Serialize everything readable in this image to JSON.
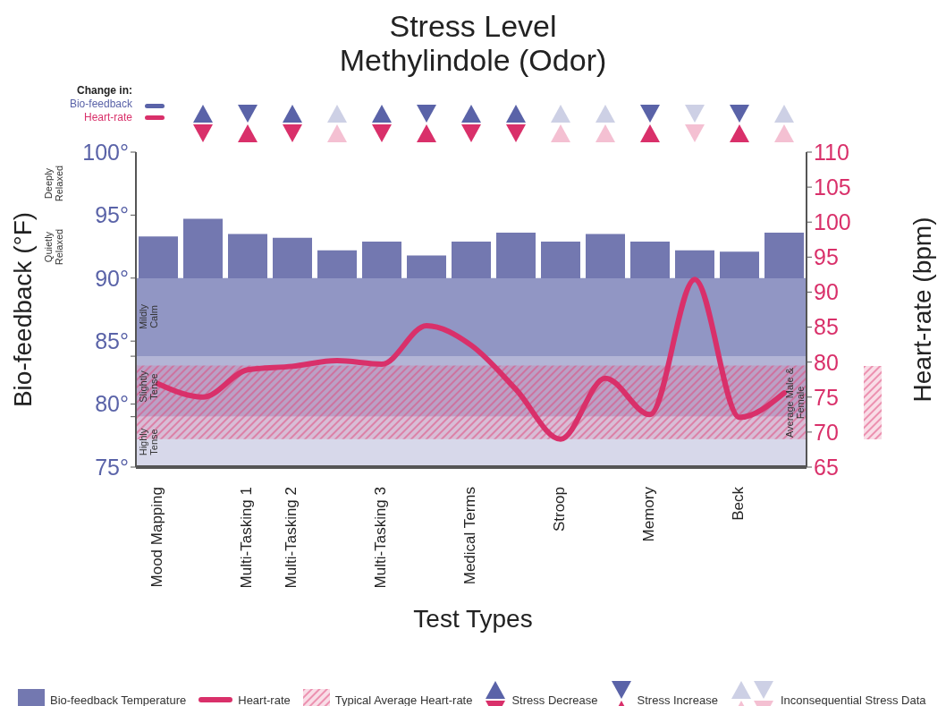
{
  "chart_data": {
    "type": "bar",
    "title": "Stress Level",
    "subtitle": "Methylindole (Odor)",
    "xlabel": "Test Types",
    "ylabel": "Bio-feedback (°F)",
    "y2label": "Heart-rate (bpm)",
    "categories": [
      "Mood Mapping",
      null,
      "Multi-Tasking 1",
      "Multi-Tasking 2",
      null,
      "Multi-Tasking 3",
      null,
      "Medical Terms",
      null,
      "Stroop",
      null,
      "Memory",
      null,
      "Beck",
      null
    ],
    "series": [
      {
        "name": "Bio-feedback Temperature",
        "color": "#7378b0",
        "values": [
          93.3,
          94.7,
          93.5,
          93.2,
          92.2,
          92.9,
          91.8,
          92.9,
          93.6,
          92.9,
          93.5,
          92.9,
          92.2,
          92.1,
          93.6
        ]
      },
      {
        "name": "Heart-rate",
        "type": "line",
        "axis": "y2",
        "color": "#d9306a",
        "values": [
          76.9,
          75.0,
          78.9,
          79.4,
          80.2,
          79.7,
          85.2,
          82.4,
          76.1,
          69.0,
          77.7,
          72.5,
          91.8,
          72.1,
          75.6
        ]
      }
    ],
    "ylim": [
      75,
      100
    ],
    "yticks": [
      {
        "value": 75,
        "label": "75°"
      },
      {
        "value": 79,
        "label": null
      },
      {
        "value": 80,
        "label": "80°"
      },
      {
        "value": 83.8,
        "label": null
      },
      {
        "value": 85,
        "label": "85°"
      },
      {
        "value": 90,
        "label": "90°"
      },
      {
        "value": 95,
        "label": "95°"
      },
      {
        "value": 100,
        "label": "100°"
      }
    ],
    "y2lim": [
      65,
      110
    ],
    "y2ticks": [
      65,
      70,
      75,
      80,
      85,
      90,
      95,
      100,
      105,
      110
    ],
    "bands": [
      {
        "axis": "y",
        "from": 83.8,
        "to": 90,
        "label": "Mildly Calm",
        "color": "#9196c4"
      },
      {
        "axis": "y",
        "from": 79,
        "to": 83.8,
        "label": "Slightly Tense",
        "color": "#b3b5d6"
      },
      {
        "axis": "y",
        "from": 75,
        "to": 79,
        "label": "Highly Tense",
        "color": "#d7d8ea"
      },
      {
        "axis": "y2",
        "from": 69,
        "to": 79.5,
        "label": "Average Male & Female",
        "color": "#e0457a"
      }
    ],
    "annotations": [
      "Change in:",
      "Bio-feedback",
      "Heart-rate",
      "Typical Average Heart-rate",
      "Stress Decrease",
      "Stress Increase",
      "Inconsequential Stress Data",
      "Deeply Relaxed",
      "Quietly Relaxed"
    ],
    "marker": "none",
    "legend": "bottom"
  }
}
